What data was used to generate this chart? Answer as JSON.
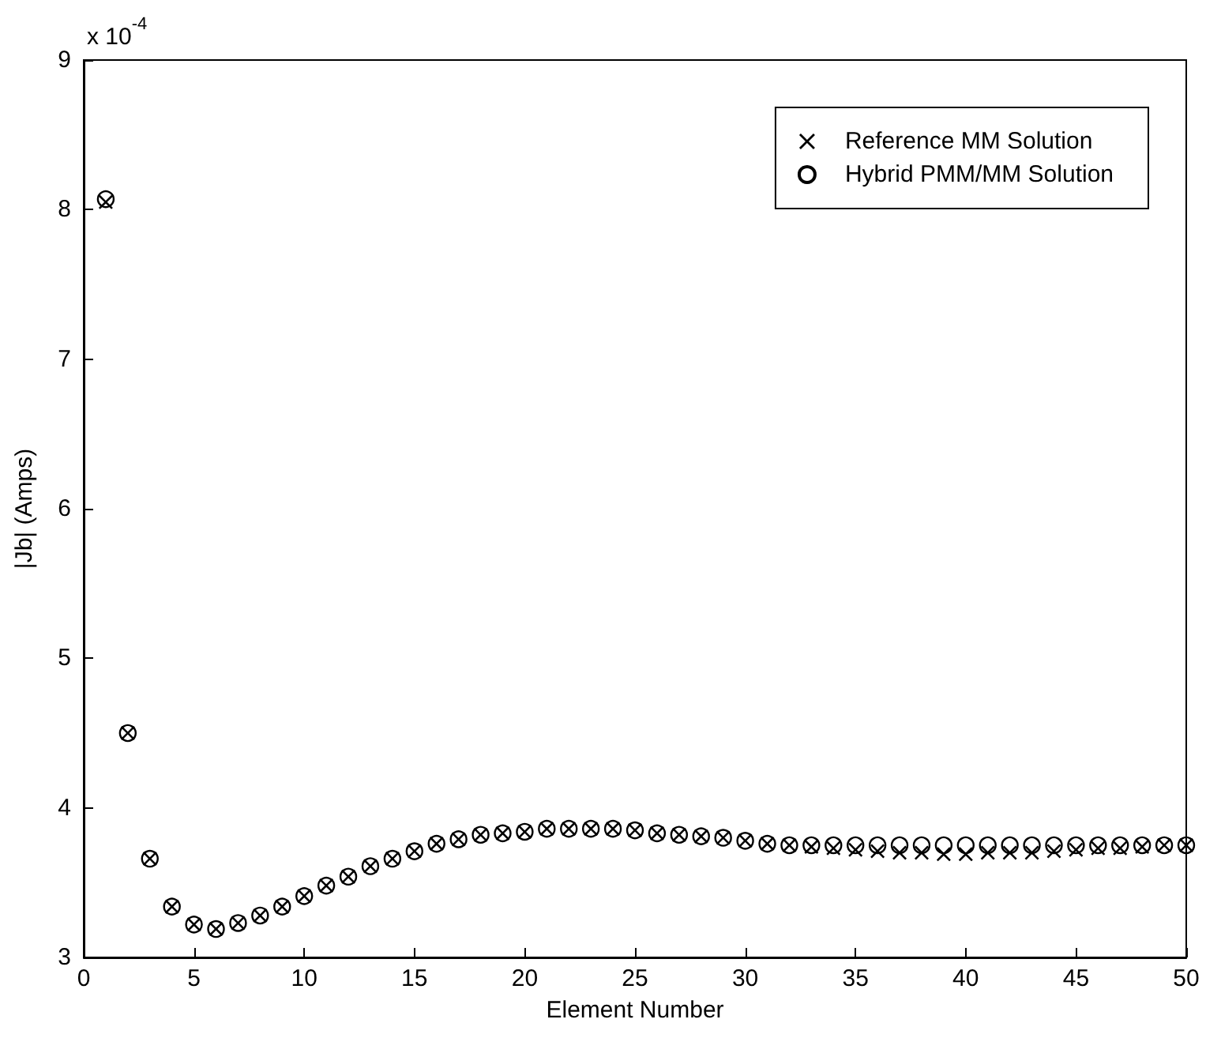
{
  "chart_data": {
    "type": "scatter",
    "xlabel": "Element Number",
    "ylabel": "|Jb| (Amps)",
    "annotations": [
      "x 10$^{-4}$"
    ],
    "x": [
      1,
      2,
      3,
      4,
      5,
      6,
      7,
      8,
      9,
      10,
      11,
      12,
      13,
      14,
      15,
      16,
      17,
      18,
      19,
      20,
      21,
      22,
      23,
      24,
      25,
      26,
      27,
      28,
      29,
      30,
      31,
      32,
      33,
      34,
      35,
      36,
      37,
      38,
      39,
      40,
      41,
      42,
      43,
      44,
      45,
      46,
      47,
      48,
      49,
      50
    ],
    "series": [
      {
        "name": "Reference MM Solution",
        "color": "#000000",
        "marker": "cross",
        "values": [
          8.05,
          4.5,
          3.66,
          3.34,
          3.22,
          3.19,
          3.23,
          3.28,
          3.34,
          3.41,
          3.48,
          3.54,
          3.61,
          3.66,
          3.71,
          3.76,
          3.79,
          3.82,
          3.83,
          3.84,
          3.86,
          3.86,
          3.86,
          3.86,
          3.85,
          3.83,
          3.82,
          3.81,
          3.8,
          3.78,
          3.76,
          3.75,
          3.74,
          3.73,
          3.72,
          3.71,
          3.7,
          3.7,
          3.69,
          3.69,
          3.7,
          3.7,
          3.7,
          3.71,
          3.72,
          3.73,
          3.73,
          3.74,
          3.75,
          3.75
        ]
      },
      {
        "name": "Hybrid PMM/MM Solution",
        "color": "#000000",
        "marker": "circle",
        "values": [
          8.07,
          4.5,
          3.66,
          3.34,
          3.22,
          3.19,
          3.23,
          3.28,
          3.34,
          3.41,
          3.48,
          3.54,
          3.61,
          3.66,
          3.71,
          3.76,
          3.79,
          3.82,
          3.83,
          3.84,
          3.86,
          3.86,
          3.86,
          3.86,
          3.85,
          3.83,
          3.82,
          3.81,
          3.8,
          3.78,
          3.76,
          3.75,
          3.75,
          3.75,
          3.75,
          3.75,
          3.75,
          3.75,
          3.75,
          3.75,
          3.75,
          3.75,
          3.75,
          3.75,
          3.75,
          3.75,
          3.75,
          3.75,
          3.75,
          3.75
        ]
      }
    ],
    "xlim": [
      0,
      50
    ],
    "xticks": [
      0,
      5,
      10,
      15,
      20,
      25,
      30,
      35,
      40,
      45,
      50
    ],
    "ylim": [
      3,
      9
    ],
    "yticks": [
      3,
      4,
      5,
      6,
      7,
      8,
      9
    ],
    "grid": false,
    "legend": "top right"
  }
}
